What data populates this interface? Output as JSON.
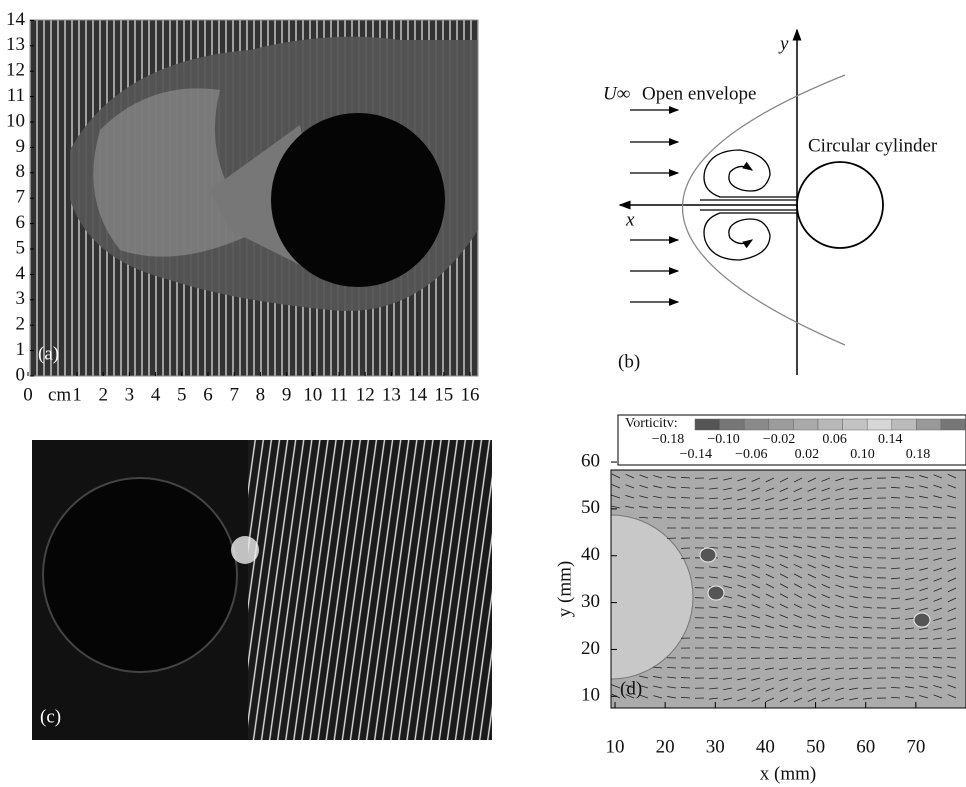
{
  "panels": {
    "a": {
      "label": "(a)",
      "yticks": [
        0,
        1,
        2,
        3,
        4,
        5,
        6,
        7,
        8,
        9,
        10,
        11,
        12,
        13,
        14
      ],
      "xticks": [
        0,
        1,
        2,
        3,
        4,
        5,
        6,
        7,
        8,
        9,
        10,
        11,
        12,
        13,
        14,
        15,
        16
      ],
      "x_unit": "cm"
    },
    "b": {
      "label": "(b)",
      "free_stream": "U∞",
      "envelope": "Open envelope",
      "cylinder": "Circular cylinder",
      "y_axis": "y",
      "x_axis": "x"
    },
    "c": {
      "label": "(c)"
    },
    "d": {
      "label": "(d)",
      "colorbar_title": "Vorticitv:",
      "colorbar_ticks": [
        {
          "value": -0.18,
          "label": "−0.18"
        },
        {
          "value": -0.14,
          "label": "−0.14"
        },
        {
          "value": -0.1,
          "label": "−0.10"
        },
        {
          "value": -0.06,
          "label": "−0.06"
        },
        {
          "value": -0.02,
          "label": "−0.02"
        },
        {
          "value": 0.02,
          "label": "0.02"
        },
        0.06,
        {
          "value": 0.1,
          "label": "0.10"
        },
        0.14,
        0.18
      ],
      "xlabel": "x (mm)",
      "ylabel": "y (mm)",
      "xlim": [
        9.2,
        80
      ],
      "ylim": [
        7.5,
        58.3
      ],
      "xticks": [
        10,
        20,
        30,
        40,
        50,
        60,
        70
      ],
      "yticks": [
        10,
        20,
        30,
        40,
        50,
        60
      ]
    }
  }
}
